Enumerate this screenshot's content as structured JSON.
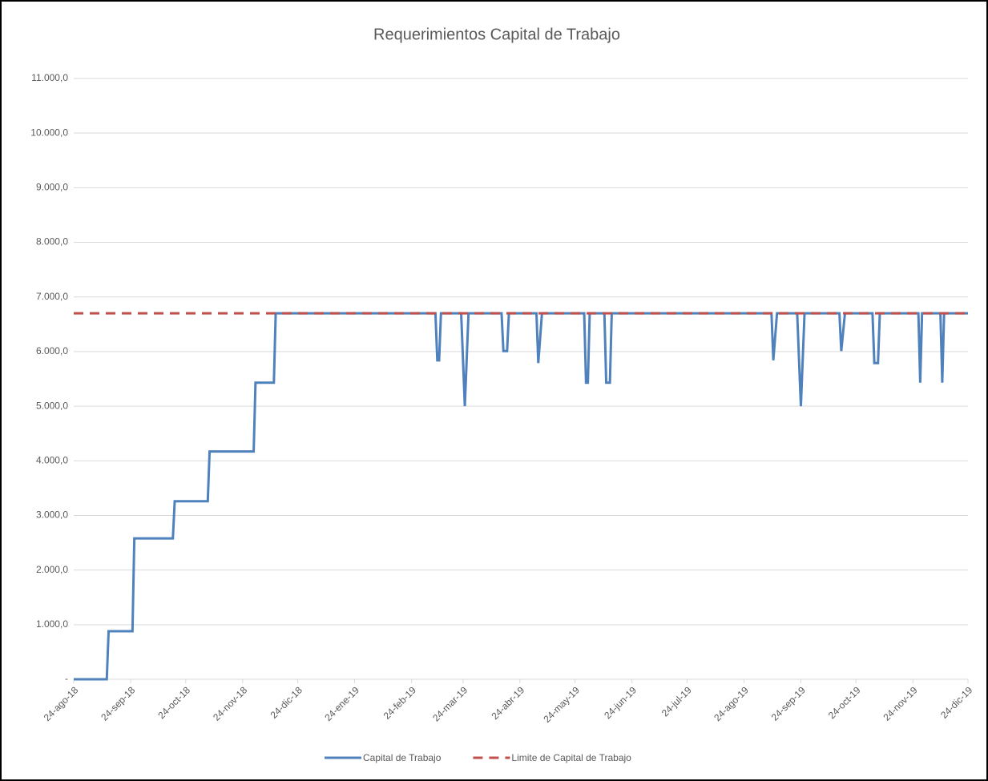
{
  "chart_data": {
    "type": "line",
    "title": "Requerimientos Capital de Trabajo",
    "xlim": [
      "24-ago-18",
      "24-dic-19"
    ],
    "xticks": [
      "24-ago-18",
      "24-sep-18",
      "24-oct-18",
      "24-nov-18",
      "24-dic-18",
      "24-ene-19",
      "24-feb-19",
      "24-mar-19",
      "24-abr-19",
      "24-may-19",
      "24-jun-19",
      "24-jul-19",
      "24-ago-19",
      "24-sep-19",
      "24-oct-19",
      "24-nov-19",
      "24-dic-19"
    ],
    "ylim": [
      0,
      11000
    ],
    "yticks": [
      {
        "value": 0,
        "label": "-"
      },
      {
        "value": 1000,
        "label": "1.000,0"
      },
      {
        "value": 2000,
        "label": "2.000,0"
      },
      {
        "value": 3000,
        "label": "3.000,0"
      },
      {
        "value": 4000,
        "label": "4.000,0"
      },
      {
        "value": 5000,
        "label": "5.000,0"
      },
      {
        "value": 6000,
        "label": "6.000,0"
      },
      {
        "value": 7000,
        "label": "7.000,0"
      },
      {
        "value": 8000,
        "label": "8.000,0"
      },
      {
        "value": 9000,
        "label": "9.000,0"
      },
      {
        "value": 10000,
        "label": "10.000,0"
      },
      {
        "value": 11000,
        "label": "11.000,0"
      }
    ],
    "grid": true,
    "legend": "bottom",
    "series": [
      {
        "name": "Capital de Trabajo",
        "color": "#4f81bd",
        "style": "solid",
        "x": [
          "24-ago-18",
          "11-sep-18",
          "12-sep-18",
          "25-sep-18",
          "26-sep-18",
          "17-oct-18",
          "18-oct-18",
          "5-nov-18",
          "6-nov-18",
          "30-nov-18",
          "1-dic-18",
          "11-dic-18",
          "12-dic-18",
          "9-mar-19",
          "10-mar-19",
          "11-mar-19",
          "12-mar-19",
          "23-mar-19",
          "25-mar-19",
          "27-mar-19",
          "14-abr-19",
          "15-abr-19",
          "17-abr-19",
          "18-abr-19",
          "3-may-19",
          "4-may-19",
          "6-may-19",
          "29-may-19",
          "30-may-19",
          "31-may-19",
          "1-jun-19",
          "9-jun-19",
          "10-jun-19",
          "12-jun-19",
          "13-jun-19",
          "8-sep-19",
          "9-sep-19",
          "11-sep-19",
          "22-sep-19",
          "24-sep-19",
          "26-sep-19",
          "15-oct-19",
          "16-oct-19",
          "18-oct-19",
          "2-nov-19",
          "3-nov-19",
          "5-nov-19",
          "6-nov-19",
          "27-nov-19",
          "28-nov-19",
          "29-nov-19",
          "9-dic-19",
          "10-dic-19",
          "11-dic-19",
          "24-dic-19"
        ],
        "values": [
          0,
          0,
          880,
          880,
          2580,
          2580,
          3260,
          3260,
          4170,
          4170,
          5430,
          5430,
          6700,
          6700,
          5840,
          5840,
          6700,
          6700,
          5000,
          6700,
          6700,
          6010,
          6010,
          6700,
          6700,
          5790,
          6700,
          6700,
          5430,
          5430,
          6700,
          6700,
          5430,
          5430,
          6700,
          6700,
          5840,
          6700,
          6700,
          5000,
          6700,
          6700,
          6010,
          6700,
          6700,
          5790,
          5790,
          6700,
          6700,
          5430,
          6700,
          6700,
          5430,
          6700,
          6700
        ]
      },
      {
        "name": "Limite de Capital de Trabajo",
        "color": "#c0504d",
        "style": "dashed",
        "x": [
          "24-ago-18",
          "24-dic-19"
        ],
        "values": [
          6700,
          6700
        ]
      }
    ]
  }
}
